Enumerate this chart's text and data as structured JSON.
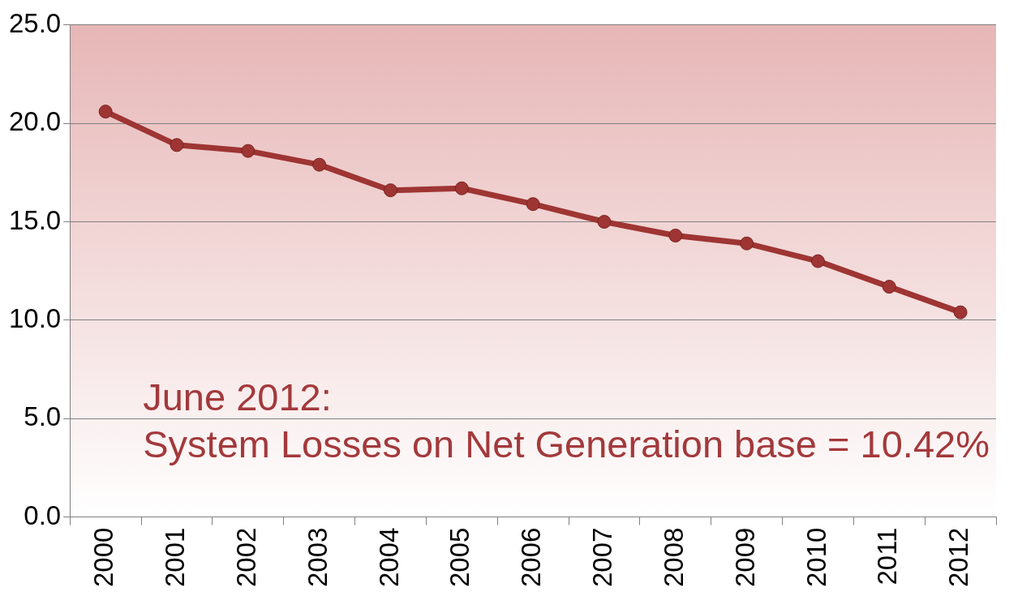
{
  "chart_data": {
    "type": "line",
    "categories": [
      "2000",
      "2001",
      "2002",
      "2003",
      "2004",
      "2005",
      "2006",
      "2007",
      "2008",
      "2009",
      "2010",
      "2011",
      "2012"
    ],
    "series": [
      {
        "color": "#9e3533",
        "values": [
          20.6,
          18.9,
          18.6,
          17.9,
          16.6,
          16.7,
          15.9,
          15.0,
          14.3,
          13.9,
          13.0,
          11.7,
          10.4
        ]
      }
    ],
    "ylim": [
      0,
      25
    ],
    "yticks": [
      {
        "value": 0,
        "label": "0.0"
      },
      {
        "value": 5,
        "label": "5.0"
      },
      {
        "value": 10,
        "label": "10.0"
      },
      {
        "value": 15,
        "label": "15.0"
      },
      {
        "value": 20,
        "label": "20.0"
      },
      {
        "value": 25,
        "label": "25.0"
      }
    ],
    "grid": "y",
    "legend": false,
    "marker": "circle",
    "line_style": "solid",
    "annotations": [
      "June 2012:",
      "System Losses on Net Generation base = 10.42%"
    ]
  }
}
